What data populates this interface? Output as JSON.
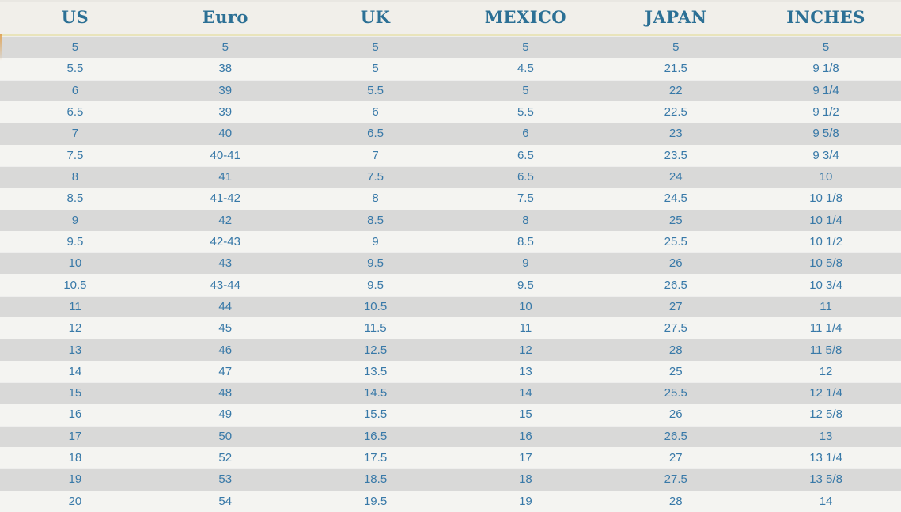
{
  "chart_data": {
    "type": "table",
    "columns": [
      "US",
      "Euro",
      "UK",
      "MEXICO",
      "JAPAN",
      "INCHES"
    ],
    "rows": [
      [
        "5",
        "5",
        "5",
        "5",
        "5",
        "5"
      ],
      [
        "5.5",
        "38",
        "5",
        "4.5",
        "21.5",
        "9 1/8"
      ],
      [
        "6",
        "39",
        "5.5",
        "5",
        "22",
        "9 1/4"
      ],
      [
        "6.5",
        "39",
        "6",
        "5.5",
        "22.5",
        "9 1/2"
      ],
      [
        "7",
        "40",
        "6.5",
        "6",
        "23",
        "9 5/8"
      ],
      [
        "7.5",
        "40-41",
        "7",
        "6.5",
        "23.5",
        "9 3/4"
      ],
      [
        "8",
        "41",
        "7.5",
        "6.5",
        "24",
        "10"
      ],
      [
        "8.5",
        "41-42",
        "8",
        "7.5",
        "24.5",
        "10 1/8"
      ],
      [
        "9",
        "42",
        "8.5",
        "8",
        "25",
        "10 1/4"
      ],
      [
        "9.5",
        "42-43",
        "9",
        "8.5",
        "25.5",
        "10 1/2"
      ],
      [
        "10",
        "43",
        "9.5",
        "9",
        "26",
        "10 5/8"
      ],
      [
        "10.5",
        "43-44",
        "9.5",
        "9.5",
        "26.5",
        "10 3/4"
      ],
      [
        "11",
        "44",
        "10.5",
        "10",
        "27",
        "11"
      ],
      [
        "12",
        "45",
        "11.5",
        "11",
        "27.5",
        "11 1/4"
      ],
      [
        "13",
        "46",
        "12.5",
        "12",
        "28",
        "11 5/8"
      ],
      [
        "14",
        "47",
        "13.5",
        "13",
        "25",
        "12"
      ],
      [
        "15",
        "48",
        "14.5",
        "14",
        "25.5",
        "12 1/4"
      ],
      [
        "16",
        "49",
        "15.5",
        "15",
        "26",
        "12 5/8"
      ],
      [
        "17",
        "50",
        "16.5",
        "16",
        "26.5",
        "13"
      ],
      [
        "18",
        "52",
        "17.5",
        "17",
        "27",
        "13 1/4"
      ],
      [
        "19",
        "53",
        "18.5",
        "18",
        "27.5",
        "13 5/8"
      ],
      [
        "20",
        "54",
        "19.5",
        "19",
        "28",
        "14"
      ]
    ]
  },
  "colors": {
    "header_text": "#2c7095",
    "cell_text": "#3879a8",
    "header_bg": "#f1efea",
    "row_gray": "#d9d9d8",
    "row_light": "#f4f4f1",
    "divider_yellow": "#e9e4bb",
    "left_accent": "#dfa65c"
  }
}
